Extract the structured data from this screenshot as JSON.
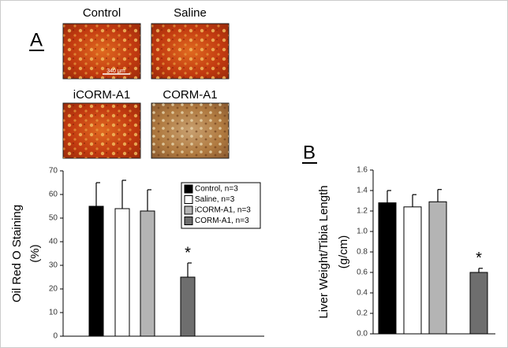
{
  "panel_labels": [
    "A",
    "B"
  ],
  "micrographs": {
    "labels": [
      "Control",
      "Saline",
      "iCORM-A1",
      "CORM-A1"
    ],
    "scale_bar": "340 µm"
  },
  "chart_data": [
    {
      "type": "bar",
      "ylabel": [
        "Oil Red O Staining",
        "(%)"
      ],
      "categories": [
        null,
        null,
        null,
        null
      ],
      "legend": [
        "Control, n=3",
        "Saline, n=3",
        "iCORM-A1, n=3",
        "CORM-A1, n=3"
      ],
      "colors": [
        "#000000",
        "#ffffff",
        "#b4b4b4",
        "#6e6e6e"
      ],
      "values": [
        55,
        54,
        53,
        25
      ],
      "errors": [
        10,
        12,
        9,
        6
      ],
      "ylim": [
        0,
        70
      ],
      "yticks": [
        0,
        10,
        20,
        30,
        40,
        50,
        60,
        70
      ],
      "annotations": [
        "*"
      ]
    },
    {
      "type": "bar",
      "ylabel": [
        "Liver Weight/Tibia Length",
        "(g/cm)"
      ],
      "categories": [
        null,
        null,
        null,
        null
      ],
      "colors": [
        "#000000",
        "#ffffff",
        "#b4b4b4",
        "#6e6e6e"
      ],
      "values": [
        1.28,
        1.24,
        1.29,
        0.6
      ],
      "errors": [
        0.12,
        0.12,
        0.12,
        0.04
      ],
      "ylim": [
        0,
        1.6
      ],
      "yticks": [
        {
          "value": 0,
          "label": "0.0"
        },
        0.2,
        0.4,
        0.6,
        0.8,
        {
          "value": 1,
          "label": "1.0"
        },
        1.2,
        1.4,
        1.6
      ],
      "annotations": [
        "*"
      ]
    }
  ]
}
